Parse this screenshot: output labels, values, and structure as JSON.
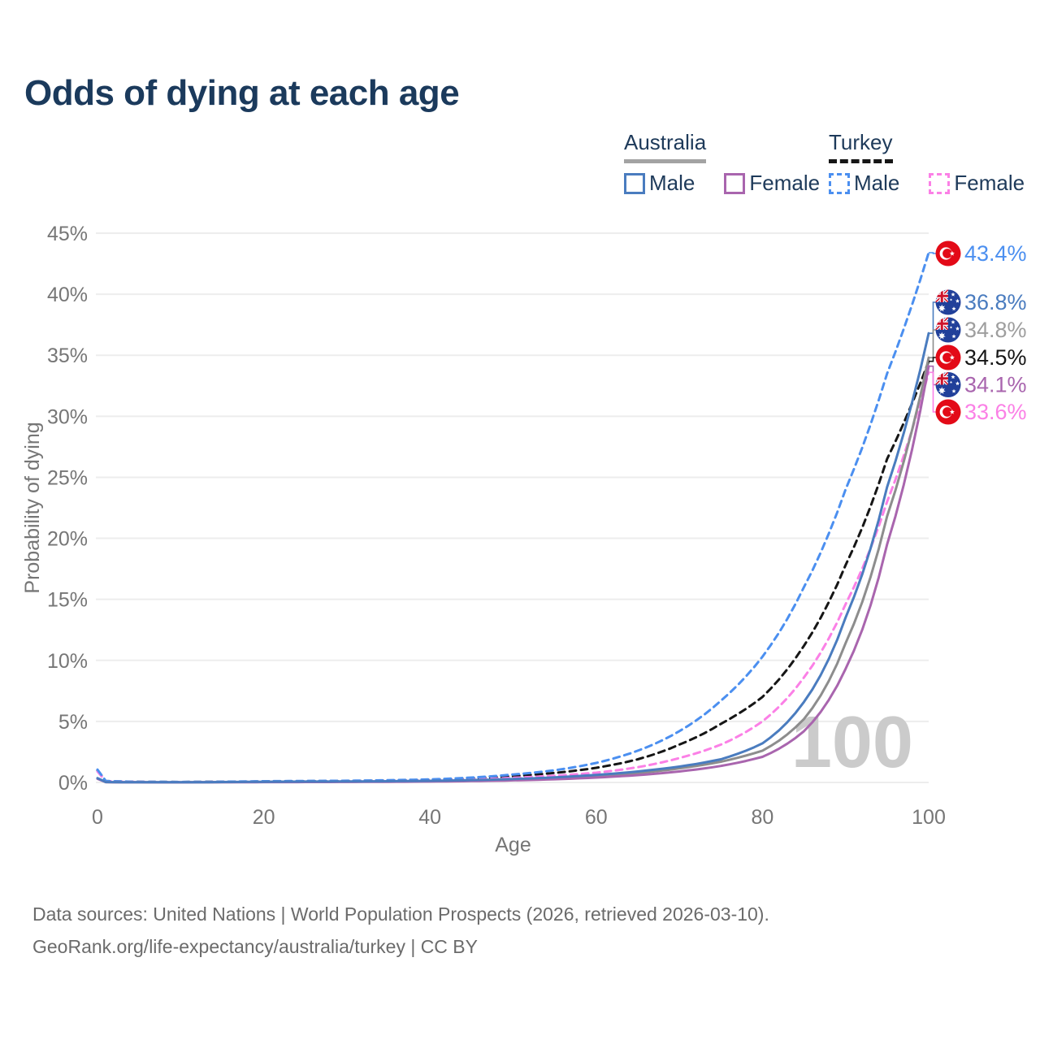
{
  "title": "Odds of dying at each age",
  "legend": {
    "australia": {
      "label": "Australia",
      "male": "Male",
      "female": "Female"
    },
    "turkey": {
      "label": "Turkey",
      "male": "Male",
      "female": "Female"
    }
  },
  "watermark_age": "100",
  "footer": {
    "line1": "Data sources: United Nations | World Population Prospects (2026, retrieved 2026-03-10).",
    "line2": "GeoRank.org/life-expectancy/australia/turkey | CC BY"
  },
  "colors": {
    "title": "#1b3a5c",
    "legend_text": "#1e3a5a",
    "axis_text": "#767676",
    "grid": "#ededed",
    "watermark": "#cbcbcb",
    "footer_text": "#6b6b6b",
    "australia_underline": "#a3a3a3",
    "turkey_underline": "#161616"
  },
  "chart_data": {
    "type": "line",
    "title": "Odds of dying at each age",
    "xlabel": "Age",
    "ylabel": "Probability of dying",
    "xlim": [
      0,
      100
    ],
    "ylim_percent": [
      0,
      45
    ],
    "grid": "horizontal-only",
    "x_tick_labels": [
      "0",
      "20",
      "40",
      "60",
      "80",
      "100"
    ],
    "x_tick_values": [
      0,
      20,
      40,
      60,
      80,
      100
    ],
    "y_tick_labels": [
      "0%",
      "5%",
      "10%",
      "15%",
      "20%",
      "25%",
      "30%",
      "35%",
      "40%",
      "45%"
    ],
    "y_tick_values": [
      0,
      5,
      10,
      15,
      20,
      25,
      30,
      35,
      40,
      45
    ],
    "anchor_ages": [
      0,
      1,
      5,
      10,
      15,
      20,
      25,
      30,
      35,
      40,
      45,
      50,
      55,
      60,
      65,
      70,
      75,
      80,
      85,
      90,
      95,
      100
    ],
    "series": [
      {
        "id": "turkey_total",
        "name": "Turkey — Both sexes",
        "country": "Turkey",
        "sex": "both",
        "style": "dashed",
        "color": "#161616",
        "label_color": "#161616",
        "flag": "turkey-flag-icon",
        "end_label": "34.5%",
        "end_value": 34.5,
        "values_percent": [
          1.0,
          0.11,
          0.045,
          0.035,
          0.05,
          0.08,
          0.1,
          0.12,
          0.15,
          0.21,
          0.32,
          0.52,
          0.78,
          1.2,
          1.9,
          3.1,
          4.8,
          7.0,
          11.2,
          17.8,
          26.5,
          34.5
        ]
      },
      {
        "id": "turkey_female",
        "name": "Turkey — Female",
        "country": "Turkey",
        "sex": "female",
        "style": "dashed",
        "color": "#fb80e6",
        "label_color": "#fb80e6",
        "flag": "turkey-flag-icon",
        "end_label": "33.6%",
        "end_value": 33.6,
        "values_percent": [
          0.9,
          0.1,
          0.04,
          0.03,
          0.04,
          0.055,
          0.07,
          0.09,
          0.12,
          0.16,
          0.24,
          0.38,
          0.55,
          0.8,
          1.25,
          2.0,
          3.1,
          5.0,
          8.6,
          14.6,
          23.0,
          33.6
        ]
      },
      {
        "id": "turkey_male",
        "name": "Turkey — Male",
        "country": "Turkey",
        "sex": "male",
        "style": "dashed",
        "color": "#4b8ff0",
        "label_color": "#4b8ff0",
        "flag": "turkey-flag-icon",
        "end_label": "43.4%",
        "end_value": 43.4,
        "values_percent": [
          1.05,
          0.12,
          0.05,
          0.04,
          0.06,
          0.1,
          0.12,
          0.14,
          0.18,
          0.25,
          0.4,
          0.65,
          1.0,
          1.6,
          2.6,
          4.2,
          6.7,
          10.3,
          16.0,
          24.0,
          33.5,
          43.4
        ]
      },
      {
        "id": "australia_total",
        "name": "Australia — Both sexes",
        "country": "Australia",
        "sex": "both",
        "style": "solid",
        "color": "#8d8d8d",
        "label_color": "#9e9e9e",
        "flag": "australia-flag-icon",
        "end_label": "34.8%",
        "end_value": 34.8,
        "values_percent": [
          0.32,
          0.028,
          0.011,
          0.009,
          0.025,
          0.04,
          0.05,
          0.06,
          0.08,
          0.1,
          0.15,
          0.22,
          0.34,
          0.51,
          0.77,
          1.15,
          1.7,
          2.6,
          5.2,
          11.4,
          21.8,
          34.8
        ]
      },
      {
        "id": "australia_female",
        "name": "Australia — Female",
        "country": "Australia",
        "sex": "female",
        "style": "solid",
        "color": "#a965ae",
        "label_color": "#a965ae",
        "flag": "australia-flag-icon",
        "end_label": "34.1%",
        "end_value": 34.1,
        "values_percent": [
          0.3,
          0.025,
          0.01,
          0.008,
          0.015,
          0.025,
          0.03,
          0.04,
          0.055,
          0.075,
          0.11,
          0.17,
          0.26,
          0.4,
          0.6,
          0.9,
          1.35,
          2.1,
          4.2,
          9.3,
          19.5,
          34.1
        ]
      },
      {
        "id": "australia_male",
        "name": "Australia — Male",
        "country": "Australia",
        "sex": "male",
        "style": "solid",
        "color": "#4a7cbf",
        "label_color": "#4a7cbf",
        "flag": "australia-flag-icon",
        "end_label": "36.8%",
        "end_value": 36.8,
        "values_percent": [
          0.35,
          0.03,
          0.012,
          0.01,
          0.035,
          0.055,
          0.07,
          0.08,
          0.1,
          0.13,
          0.19,
          0.28,
          0.42,
          0.62,
          0.9,
          1.3,
          1.9,
          3.2,
          6.6,
          13.5,
          24.2,
          36.8
        ]
      }
    ],
    "legend_position": "top-right",
    "current_age_indicator": "100"
  }
}
